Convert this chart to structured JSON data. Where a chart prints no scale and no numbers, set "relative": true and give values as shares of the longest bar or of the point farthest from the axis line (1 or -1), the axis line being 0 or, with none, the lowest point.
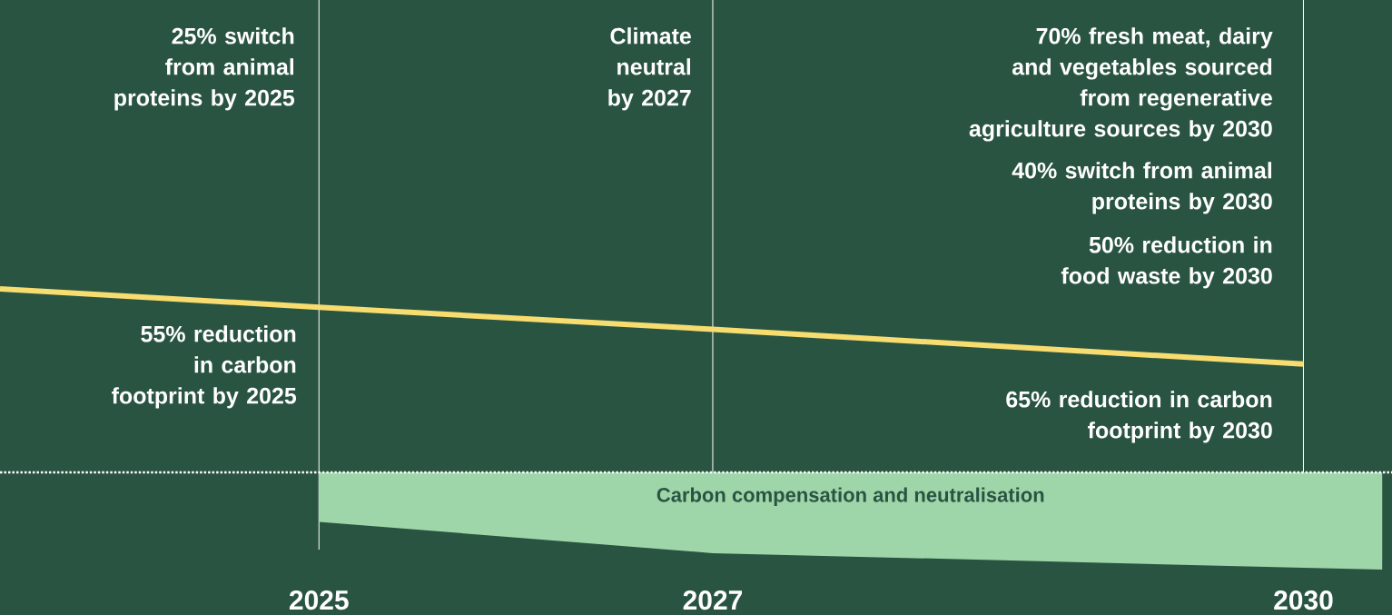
{
  "chart_data": {
    "type": "line",
    "relative": true,
    "xlim": [
      2023.38,
      2030.45
    ],
    "xticks": [
      2025,
      2027,
      2030
    ],
    "grid": "x",
    "tick_labels": "x",
    "series": [
      {
        "color": "#f7dc6f",
        "x": [
          2023.38,
          2025,
          2027,
          2030
        ],
        "values": [
          1.0,
          0.9,
          0.78,
          0.59
        ]
      },
      {
        "type": "area",
        "name": "Carbon compensation and neutralisation",
        "color": "#9fd6a9",
        "x": [
          2025,
          2027,
          2030,
          2030.4
        ],
        "values": [
          -0.27,
          -0.44,
          -0.52,
          -0.53
        ]
      }
    ],
    "ref_lines": [
      {
        "axis": "y",
        "value": 0,
        "color": "#ffffff",
        "line_style": "dotted"
      }
    ],
    "annotations": [
      "25% switch from animal proteins by 2025",
      "Climate neutral by 2027",
      "70% fresh meat, dairy and vegetables sourced from regenerative agriculture sources by 2030",
      "40% switch from animal proteins by 2030",
      "50% reduction in food waste by 2030",
      "55% reduction in carbon footprint by 2025",
      "65% reduction in carbon footprint by 2030"
    ]
  }
}
